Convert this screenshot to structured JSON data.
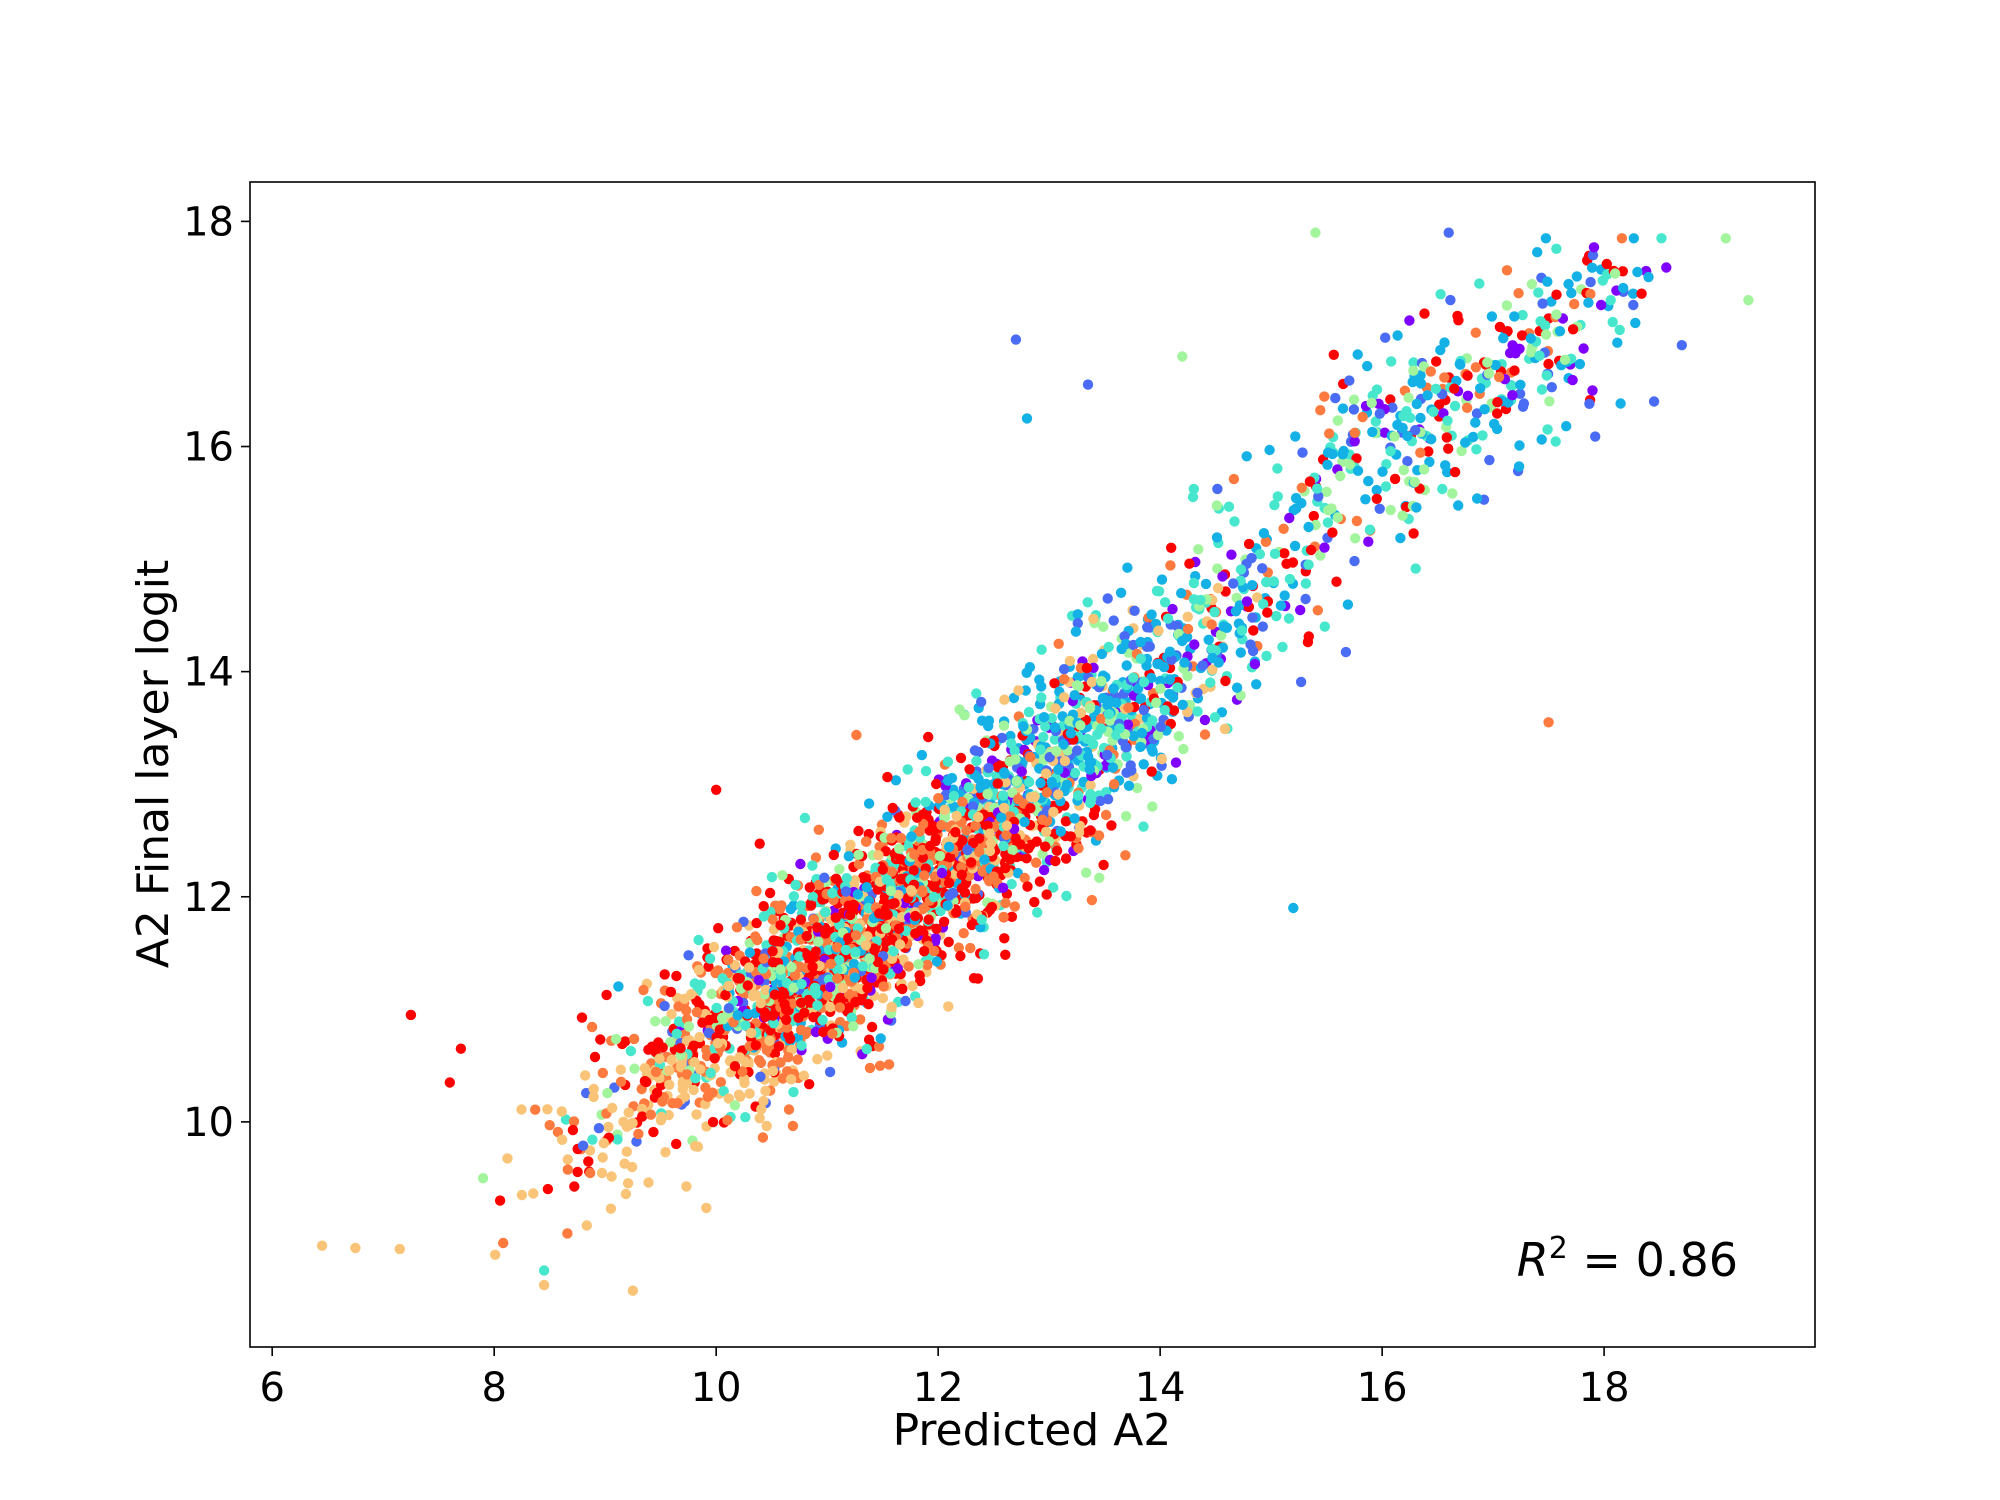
{
  "chart_data": {
    "type": "scatter",
    "title": "",
    "xlabel": "Predicted A2",
    "ylabel": "A2 Final layer logit",
    "xlim": [
      5.8,
      19.9
    ],
    "ylim": [
      8.0,
      18.35
    ],
    "xticks": [
      6,
      8,
      10,
      12,
      14,
      16,
      18
    ],
    "yticks": [
      10,
      12,
      14,
      16,
      18
    ],
    "xtick_labels": [
      "6",
      "8",
      "10",
      "12",
      "14",
      "16",
      "18"
    ],
    "ytick_labels": [
      "10",
      "12",
      "14",
      "16",
      "18"
    ],
    "grid": false,
    "legend": "none",
    "colormap": "rainbow",
    "colors": [
      "#8000ff",
      "#4a6cf5",
      "#14b1e6",
      "#47e7cd",
      "#a3f59d",
      "#f9c477",
      "#ff7a3e",
      "#ff2a10",
      "#ff0000"
    ],
    "annotation": {
      "var": "R",
      "sup": "2",
      "text": " = 0.86",
      "position": "bottom-right"
    },
    "trend": {
      "slope": 0.9,
      "intercept": 1.5,
      "noise_sd": 0.55
    },
    "n_points": 3200,
    "outliers": [
      {
        "x": 6.45,
        "y": 8.9,
        "c": 5
      },
      {
        "x": 6.75,
        "y": 8.88,
        "c": 5
      },
      {
        "x": 7.15,
        "y": 8.87,
        "c": 5
      },
      {
        "x": 7.25,
        "y": 10.95,
        "c": 8
      },
      {
        "x": 7.6,
        "y": 10.35,
        "c": 8
      },
      {
        "x": 7.7,
        "y": 10.65,
        "c": 8
      },
      {
        "x": 7.9,
        "y": 9.5,
        "c": 4
      },
      {
        "x": 8.25,
        "y": 9.35,
        "c": 5
      },
      {
        "x": 8.45,
        "y": 8.55,
        "c": 5
      },
      {
        "x": 8.45,
        "y": 8.68,
        "c": 3
      },
      {
        "x": 9.25,
        "y": 8.5,
        "c": 5
      },
      {
        "x": 10.0,
        "y": 12.95,
        "c": 8
      },
      {
        "x": 12.7,
        "y": 16.95,
        "c": 1
      },
      {
        "x": 12.8,
        "y": 16.25,
        "c": 2
      },
      {
        "x": 13.35,
        "y": 16.55,
        "c": 1
      },
      {
        "x": 15.2,
        "y": 11.9,
        "c": 2
      },
      {
        "x": 17.5,
        "y": 13.55,
        "c": 6
      },
      {
        "x": 19.3,
        "y": 17.3,
        "c": 4
      },
      {
        "x": 18.7,
        "y": 16.9,
        "c": 1
      },
      {
        "x": 18.45,
        "y": 16.4,
        "c": 1
      },
      {
        "x": 18.3,
        "y": 17.55,
        "c": 2
      },
      {
        "x": 17.9,
        "y": 17.7,
        "c": 1
      },
      {
        "x": 16.6,
        "y": 17.9,
        "c": 1
      },
      {
        "x": 15.4,
        "y": 17.9,
        "c": 4
      },
      {
        "x": 14.2,
        "y": 16.8,
        "c": 4
      },
      {
        "x": 14.1,
        "y": 15.1,
        "c": 8
      }
    ]
  }
}
